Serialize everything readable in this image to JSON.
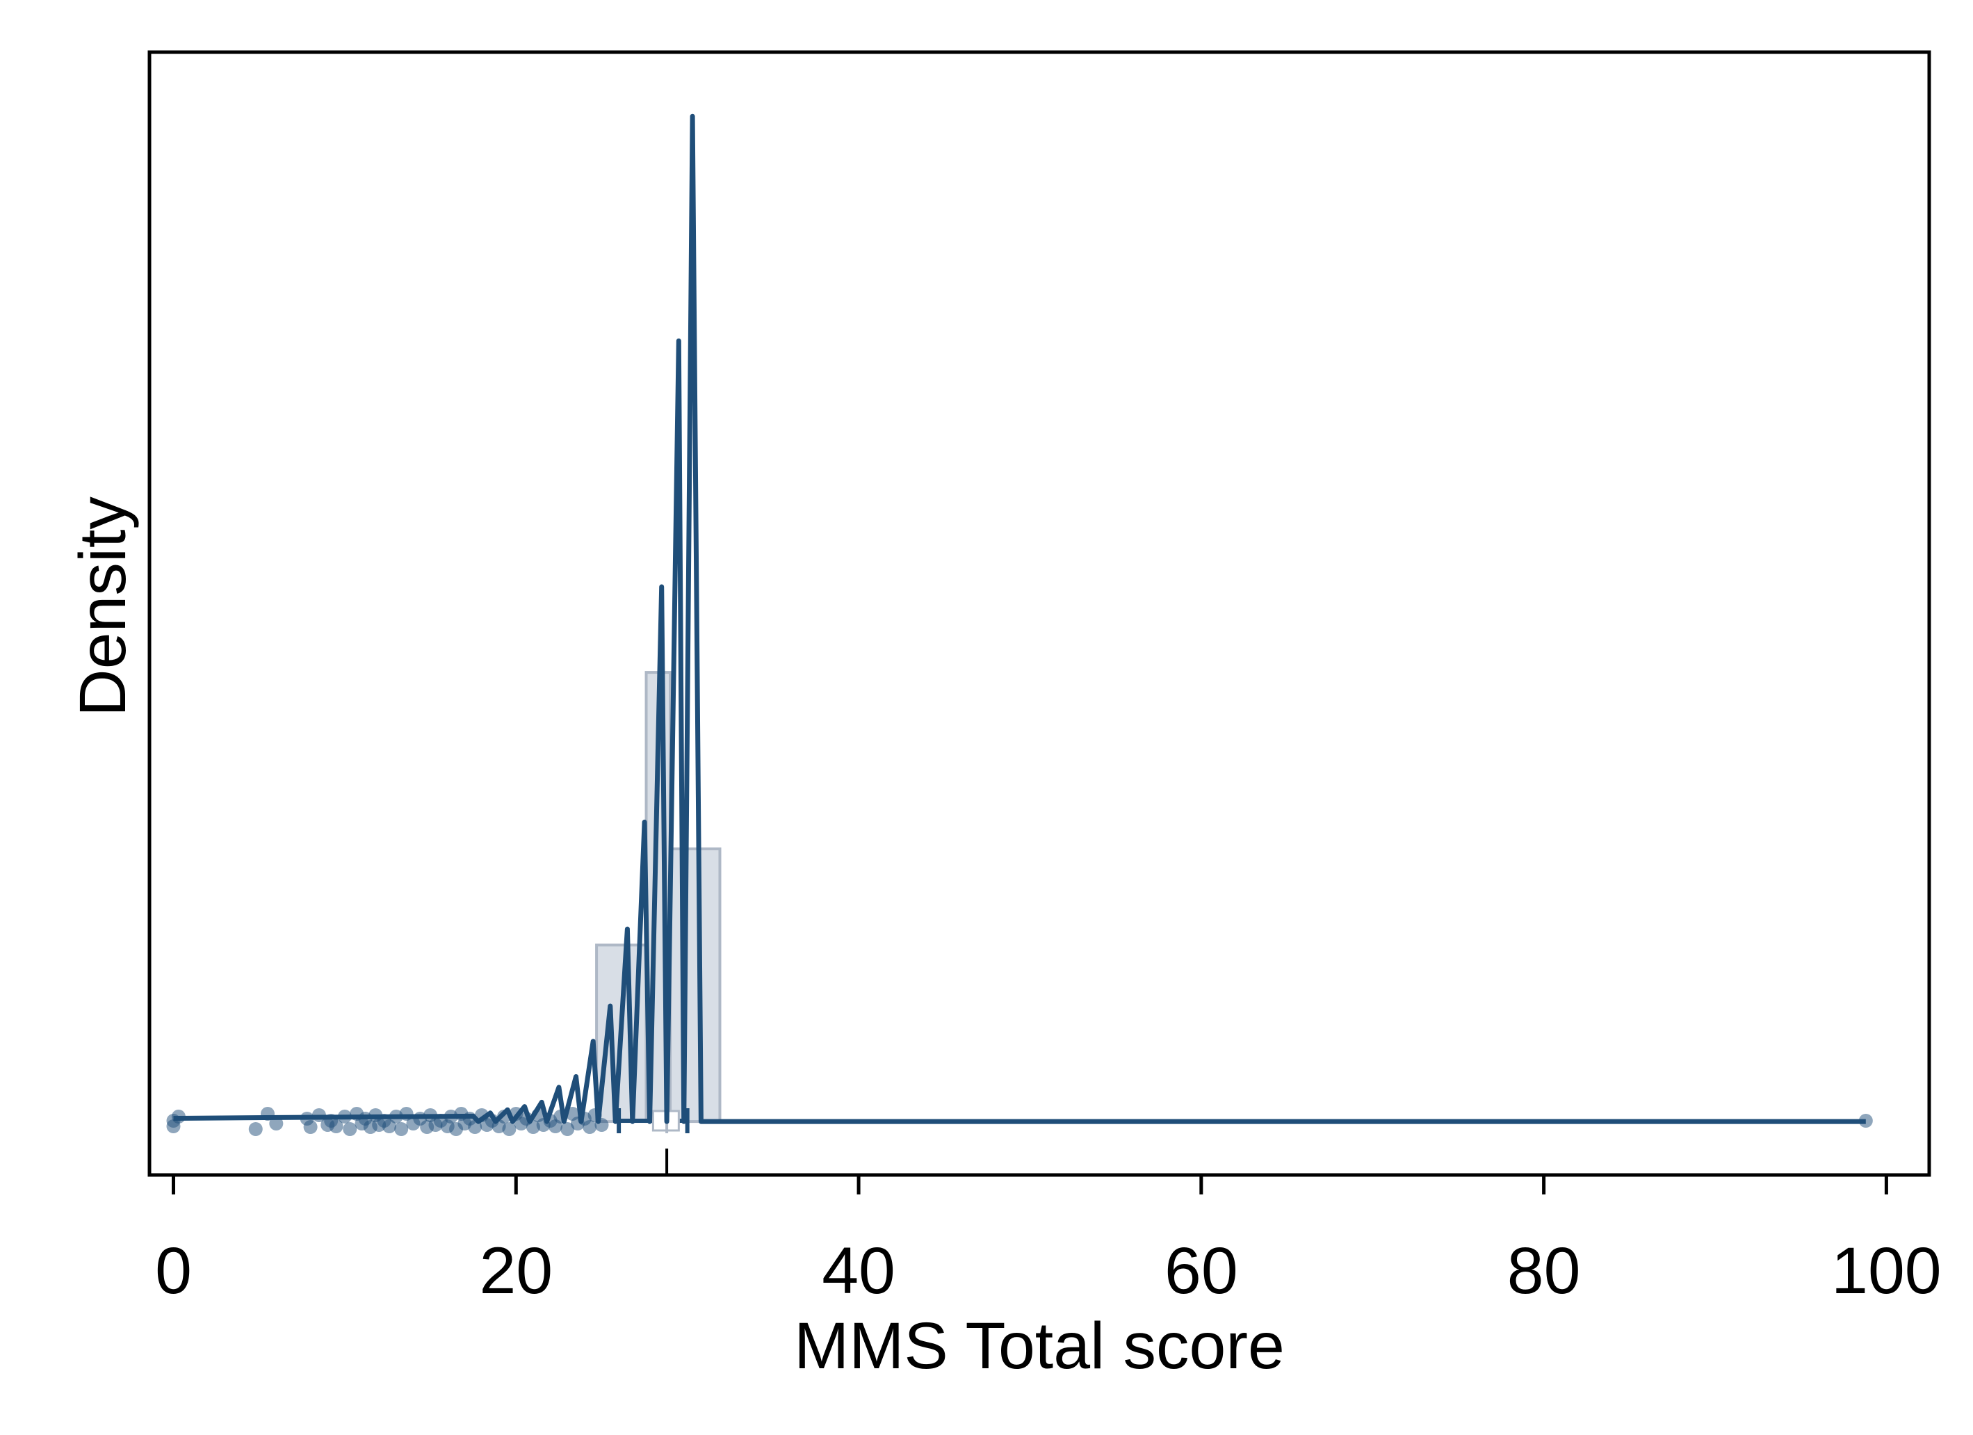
{
  "chart_data": {
    "type": "histogram-density-raincloud",
    "title": "",
    "xlabel": "MMS Total score",
    "ylabel": "Density",
    "xlim": [
      -1.4,
      102.5
    ],
    "ylim": [
      -0.05,
      1.0
    ],
    "x_ticks": [
      0,
      20,
      40,
      60,
      80,
      100
    ],
    "x_tick_labels": [
      "0",
      "20",
      "40",
      "60",
      "80",
      "100"
    ],
    "y_tick_labels": [],
    "grid": false,
    "legend": "none",
    "colors": {
      "line": "#1f4e79",
      "histogram_fill": "#d8dee6",
      "histogram_edge": "#aeb8c6",
      "points": "#1f4e79",
      "frame": "#000000"
    },
    "histogram": {
      "bins": [
        {
          "x0": 24.7,
          "x1": 27.6,
          "density": 0.165
        },
        {
          "x0": 27.6,
          "x1": 29.0,
          "density": 0.42
        },
        {
          "x0": 29.0,
          "x1": 31.9,
          "density": 0.255
        }
      ]
    },
    "density": {
      "x": [
        0.0,
        17.5,
        17.8,
        18.5,
        18.8,
        19.5,
        19.8,
        20.5,
        20.8,
        21.5,
        21.8,
        22.5,
        22.8,
        23.5,
        23.8,
        24.5,
        24.8,
        25.5,
        25.8,
        26.5,
        26.8,
        27.5,
        27.8,
        28.5,
        28.8,
        29.5,
        29.8,
        30.3,
        30.8,
        98.8
      ],
      "y": [
        0.003,
        0.005,
        0.0,
        0.008,
        0.0,
        0.011,
        0.0,
        0.014,
        0.0,
        0.018,
        0.0,
        0.032,
        0.0,
        0.042,
        0.0,
        0.075,
        0.0,
        0.108,
        0.0,
        0.18,
        0.0,
        0.28,
        0.0,
        0.5,
        0.0,
        0.73,
        0.0,
        0.94,
        0.0,
        0.0
      ]
    },
    "points": {
      "x": [
        0,
        0,
        0.3,
        4.8,
        5.5,
        6,
        7.8,
        8,
        8.5,
        9,
        9.2,
        9.5,
        10,
        10.3,
        10.7,
        11,
        11.2,
        11.5,
        11.8,
        12,
        12.3,
        12.6,
        13,
        13.3,
        13.6,
        14,
        14.4,
        14.8,
        15,
        15.3,
        15.6,
        16,
        16.2,
        16.5,
        16.8,
        17,
        17.3,
        17.6,
        18,
        18.3,
        18.6,
        19,
        19.3,
        19.6,
        20,
        20.3,
        20.6,
        21,
        21.3,
        21.6,
        22,
        22.3,
        22.6,
        23,
        23.3,
        23.6,
        24,
        24.3,
        24.6,
        25,
        98.8
      ]
    },
    "boxplot": {
      "min": 26,
      "q1": 28,
      "median": 28.8,
      "q3": 29.5,
      "max": 30
    }
  }
}
